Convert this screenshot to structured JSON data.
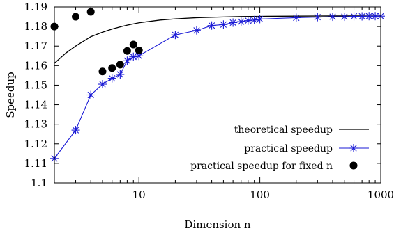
{
  "chart_data": {
    "type": "line",
    "xlabel": "Dimension n",
    "ylabel": "Speedup",
    "x_scale": "log",
    "xlim": [
      2,
      1000
    ],
    "ylim": [
      1.1,
      1.19
    ],
    "x_ticks": [
      10,
      100,
      1000
    ],
    "x_tick_labels": [
      "10",
      "100",
      "1000"
    ],
    "y_ticks": [
      1.1,
      1.11,
      1.12,
      1.13,
      1.14,
      1.15,
      1.16,
      1.17,
      1.18,
      1.19
    ],
    "y_tick_labels": [
      "1.1",
      "1.11",
      "1.12",
      "1.13",
      "1.14",
      "1.15",
      "1.16",
      "1.17",
      "1.18",
      "1.19"
    ],
    "legend_position": "bottom-right",
    "series": [
      {
        "name": "theoretical speedup",
        "style": "line",
        "color": "#000000",
        "x": [
          2,
          2.5,
          3,
          4,
          5,
          6,
          7,
          8,
          10,
          15,
          20,
          30,
          50,
          70,
          100,
          200,
          400,
          700,
          1000
        ],
        "y": [
          1.1612,
          1.1665,
          1.17,
          1.1748,
          1.1771,
          1.1787,
          1.1798,
          1.1807,
          1.1819,
          1.1833,
          1.1839,
          1.1845,
          1.1849,
          1.1851,
          1.1852,
          1.1853,
          1.1854,
          1.1854,
          1.1854
        ]
      },
      {
        "name": "practical speedup",
        "style": "line-star",
        "color": "#1a1ad6",
        "x": [
          2,
          3,
          4,
          5,
          6,
          7,
          8,
          9,
          10,
          20,
          30,
          40,
          50,
          60,
          70,
          80,
          90,
          100,
          200,
          300,
          400,
          500,
          600,
          700,
          800,
          900,
          1000
        ],
        "y": [
          1.1125,
          1.127,
          1.145,
          1.1505,
          1.1535,
          1.1555,
          1.1625,
          1.1645,
          1.165,
          1.1757,
          1.178,
          1.1805,
          1.181,
          1.182,
          1.1825,
          1.183,
          1.1833,
          1.1838,
          1.1845,
          1.1848,
          1.185,
          1.185,
          1.1852,
          1.1852,
          1.1853,
          1.1853,
          1.1853
        ]
      },
      {
        "name": "practical speedup for fixed n",
        "style": "dot",
        "color": "#000000",
        "x": [
          2,
          3,
          4,
          5,
          6,
          7,
          8,
          9,
          10
        ],
        "y": [
          1.18,
          1.185,
          1.1875,
          1.157,
          1.1588,
          1.1605,
          1.1675,
          1.1708,
          1.1678
        ]
      }
    ]
  }
}
